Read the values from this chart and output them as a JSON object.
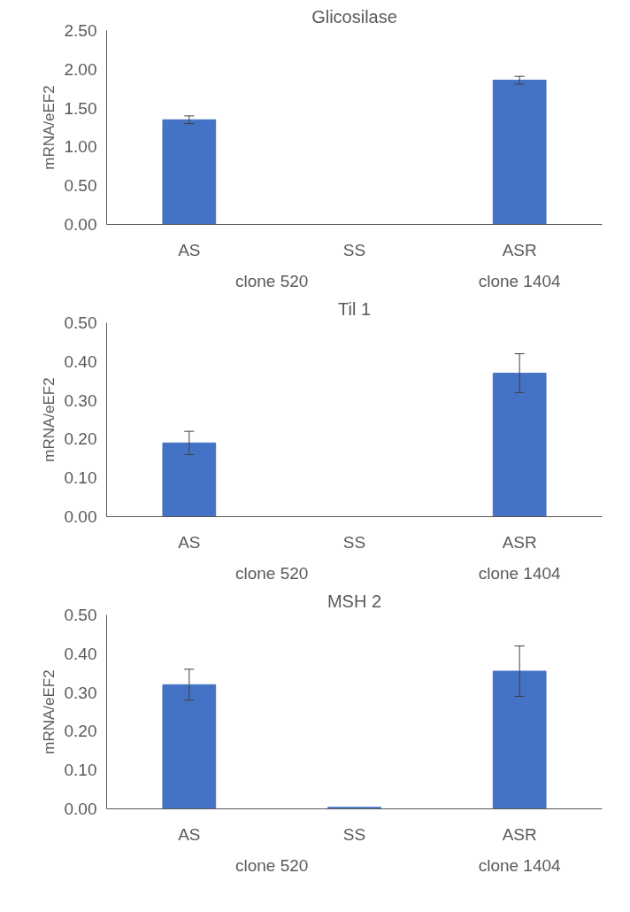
{
  "chart_data": [
    {
      "type": "bar",
      "title": "Glicosilase",
      "ylabel": "mRNA/eEF2",
      "categories": [
        "AS",
        "SS",
        "ASR"
      ],
      "values": [
        1.35,
        0.0,
        1.86
      ],
      "errors": [
        0.05,
        null,
        0.05
      ],
      "color": "#4472c4",
      "ylim": [
        0,
        2.5
      ],
      "yticks": [
        {
          "value": 0,
          "label": "0.00"
        },
        {
          "value": 0.5,
          "label": "0.50"
        },
        {
          "value": 1,
          "label": "1.00"
        },
        {
          "value": 1.5,
          "label": "1.50"
        },
        {
          "value": 2,
          "label": "2.00"
        },
        {
          "value": 2.5,
          "label": "2.50"
        }
      ],
      "grid": false,
      "annotations": [
        "clone 520",
        "clone 1404"
      ]
    },
    {
      "type": "bar",
      "title": "Til 1",
      "ylabel": "mRNA/eEF2",
      "categories": [
        "AS",
        "SS",
        "ASR"
      ],
      "values": [
        0.19,
        0.0,
        0.37
      ],
      "errors": [
        0.03,
        null,
        0.05
      ],
      "color": "#4472c4",
      "ylim": [
        0,
        0.5
      ],
      "yticks": [
        {
          "value": 0,
          "label": "0.00"
        },
        {
          "value": 0.1,
          "label": "0.10"
        },
        {
          "value": 0.2,
          "label": "0.20"
        },
        {
          "value": 0.3,
          "label": "0.30"
        },
        {
          "value": 0.4,
          "label": "0.40"
        },
        {
          "value": 0.5,
          "label": "0.50"
        }
      ],
      "grid": false,
      "annotations": [
        "clone 520",
        "clone 1404"
      ]
    },
    {
      "type": "bar",
      "title": "MSH 2",
      "ylabel": "mRNA/eEF2",
      "categories": [
        "AS",
        "SS",
        "ASR"
      ],
      "values": [
        0.32,
        0.004,
        0.355
      ],
      "errors": [
        0.04,
        null,
        0.065
      ],
      "color": "#4472c4",
      "ylim": [
        0,
        0.5
      ],
      "yticks": [
        {
          "value": 0,
          "label": "0.00"
        },
        {
          "value": 0.1,
          "label": "0.10"
        },
        {
          "value": 0.2,
          "label": "0.20"
        },
        {
          "value": 0.3,
          "label": "0.30"
        },
        {
          "value": 0.4,
          "label": "0.40"
        },
        {
          "value": 0.5,
          "label": "0.50"
        }
      ],
      "grid": false,
      "annotations": [
        "clone 520",
        "clone 1404"
      ]
    }
  ]
}
